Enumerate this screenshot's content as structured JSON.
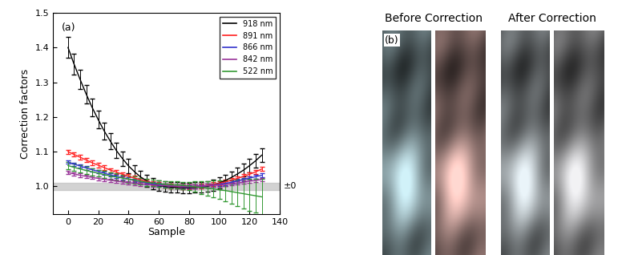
{
  "chart_data": {
    "type": "line",
    "annotation": "(a)",
    "xlabel": "Sample",
    "ylabel": "Correction factors",
    "xlim": [
      -10,
      140
    ],
    "xticks": [
      0,
      20,
      40,
      60,
      80,
      100,
      120,
      140
    ],
    "ylim": [
      0.92,
      1.5
    ],
    "yticks": [
      1.0,
      1.1,
      1.2,
      1.3,
      1.4,
      1.5
    ],
    "legend": "upper right",
    "band": {
      "label": "±0",
      "range": [
        0.99,
        1.01
      ],
      "color": "#c0c0c0"
    },
    "x": [
      0,
      4,
      8,
      12,
      16,
      20,
      24,
      28,
      32,
      36,
      40,
      44,
      48,
      52,
      56,
      60,
      64,
      68,
      72,
      76,
      80,
      84,
      88,
      92,
      96,
      100,
      104,
      108,
      112,
      116,
      120,
      124,
      128
    ],
    "series": [
      {
        "name": "918 nm",
        "color": "#000000",
        "values": [
          1.4,
          1.352,
          1.308,
          1.266,
          1.227,
          1.192,
          1.159,
          1.13,
          1.103,
          1.08,
          1.059,
          1.042,
          1.027,
          1.016,
          1.008,
          1.002,
          1.0,
          0.998,
          0.997,
          0.996,
          0.996,
          0.997,
          0.998,
          1.0,
          1.004,
          1.01,
          1.017,
          1.026,
          1.036,
          1.047,
          1.06,
          1.074,
          1.09
        ],
        "errors": [
          0.03,
          0.029,
          0.028,
          0.027,
          0.026,
          0.025,
          0.024,
          0.023,
          0.022,
          0.021,
          0.02,
          0.019,
          0.018,
          0.017,
          0.016,
          0.015,
          0.015,
          0.015,
          0.015,
          0.015,
          0.015,
          0.015,
          0.015,
          0.015,
          0.016,
          0.016,
          0.017,
          0.017,
          0.018,
          0.018,
          0.019,
          0.019,
          0.02
        ]
      },
      {
        "name": "891 nm",
        "color": "#ff2020",
        "values": [
          1.1,
          1.092,
          1.084,
          1.076,
          1.068,
          1.061,
          1.054,
          1.047,
          1.041,
          1.035,
          1.029,
          1.024,
          1.019,
          1.014,
          1.01,
          1.006,
          1.003,
          1.001,
          1.0,
          0.999,
          0.999,
          1.0,
          1.001,
          1.003,
          1.006,
          1.009,
          1.013,
          1.018,
          1.023,
          1.029,
          1.035,
          1.042,
          1.05
        ],
        "errors": [
          0.006,
          0.006,
          0.006,
          0.006,
          0.006,
          0.006,
          0.006,
          0.006,
          0.006,
          0.006,
          0.006,
          0.006,
          0.006,
          0.006,
          0.006,
          0.006,
          0.006,
          0.006,
          0.006,
          0.006,
          0.006,
          0.006,
          0.006,
          0.006,
          0.006,
          0.006,
          0.006,
          0.006,
          0.006,
          0.006,
          0.006,
          0.006,
          0.006
        ]
      },
      {
        "name": "866 nm",
        "color": "#3333cc",
        "values": [
          1.07,
          1.064,
          1.059,
          1.053,
          1.048,
          1.043,
          1.038,
          1.033,
          1.029,
          1.025,
          1.021,
          1.017,
          1.014,
          1.01,
          1.007,
          1.005,
          1.003,
          1.001,
          1.0,
          0.999,
          0.999,
          1.0,
          1.001,
          1.002,
          1.004,
          1.006,
          1.009,
          1.012,
          1.016,
          1.02,
          1.024,
          1.028,
          1.032
        ],
        "errors": [
          0.005,
          0.005,
          0.005,
          0.005,
          0.005,
          0.005,
          0.005,
          0.005,
          0.005,
          0.005,
          0.005,
          0.005,
          0.005,
          0.005,
          0.005,
          0.005,
          0.005,
          0.005,
          0.005,
          0.005,
          0.005,
          0.005,
          0.005,
          0.005,
          0.005,
          0.005,
          0.005,
          0.005,
          0.005,
          0.005,
          0.005,
          0.005,
          0.005
        ]
      },
      {
        "name": "842 nm",
        "color": "#993399",
        "values": [
          1.04,
          1.036,
          1.032,
          1.029,
          1.026,
          1.023,
          1.02,
          1.018,
          1.015,
          1.013,
          1.011,
          1.009,
          1.007,
          1.006,
          1.004,
          1.003,
          1.002,
          1.001,
          1.0,
          1.0,
          1.0,
          1.0,
          1.001,
          1.002,
          1.003,
          1.004,
          1.006,
          1.008,
          1.01,
          1.012,
          1.015,
          1.017,
          1.02
        ],
        "errors": [
          0.005,
          0.005,
          0.005,
          0.005,
          0.005,
          0.005,
          0.005,
          0.005,
          0.005,
          0.005,
          0.005,
          0.005,
          0.005,
          0.005,
          0.005,
          0.005,
          0.005,
          0.005,
          0.005,
          0.005,
          0.005,
          0.005,
          0.005,
          0.005,
          0.005,
          0.005,
          0.005,
          0.005,
          0.005,
          0.005,
          0.005,
          0.005,
          0.005
        ]
      },
      {
        "name": "522 nm",
        "color": "#339933",
        "values": [
          1.06,
          1.055,
          1.05,
          1.046,
          1.042,
          1.038,
          1.034,
          1.03,
          1.027,
          1.024,
          1.021,
          1.018,
          1.015,
          1.012,
          1.01,
          1.008,
          1.006,
          1.005,
          1.004,
          1.003,
          1.001,
          0.999,
          0.997,
          0.995,
          0.993,
          0.99,
          0.988,
          0.985,
          0.982,
          0.979,
          0.976,
          0.973,
          0.97
        ],
        "errors": [
          0.01,
          0.01,
          0.01,
          0.01,
          0.01,
          0.01,
          0.01,
          0.01,
          0.01,
          0.01,
          0.01,
          0.01,
          0.01,
          0.01,
          0.01,
          0.01,
          0.01,
          0.01,
          0.01,
          0.01,
          0.012,
          0.015,
          0.018,
          0.021,
          0.024,
          0.027,
          0.03,
          0.034,
          0.038,
          0.042,
          0.046,
          0.049,
          0.052
        ]
      }
    ]
  },
  "panel_b": {
    "label": "(b)",
    "titles": [
      "Before Correction",
      "After Correction"
    ]
  }
}
